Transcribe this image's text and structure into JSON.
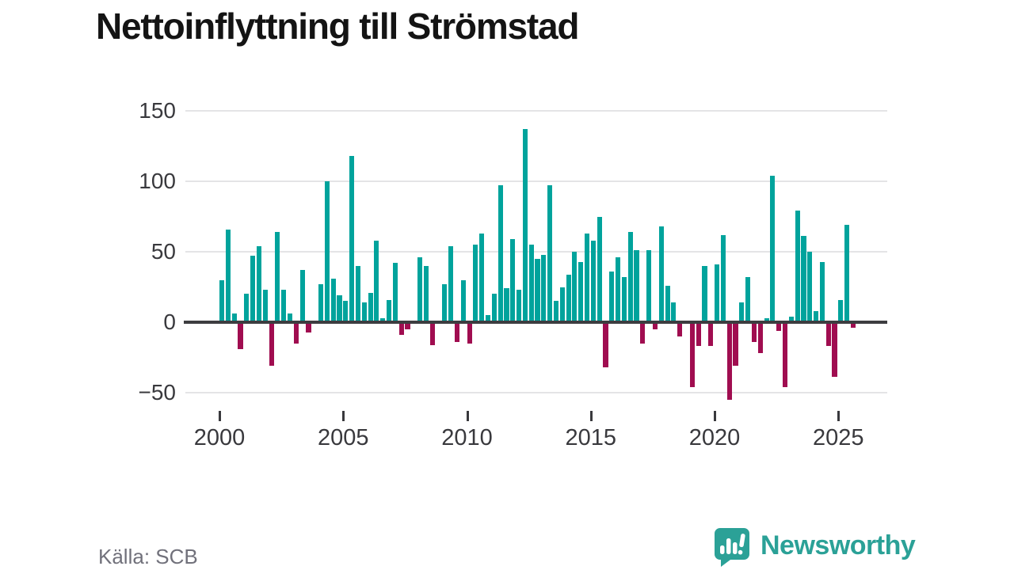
{
  "title": "Nettoinflyttning till Strömstad",
  "source": "Källa: SCB",
  "brand": {
    "name": "Newsworthy",
    "color": "#2ba197",
    "icon": "speech-bubble-bar-chart"
  },
  "chart_data": {
    "type": "bar",
    "title": "Nettoinflyttning till Strömstad",
    "xlabel": "",
    "ylabel": "",
    "frequency": "quarterly",
    "start_period": "2000Q1",
    "end_period": "2025Q3",
    "x_tick_labels": [
      "2000",
      "2005",
      "2010",
      "2015",
      "2020",
      "2025"
    ],
    "y_tick_values": [
      150,
      100,
      50,
      0,
      -50
    ],
    "ylim": [
      -62,
      158
    ],
    "grid": "horizontal",
    "legend": "none",
    "positive_color": "#00a39c",
    "negative_color": "#a00d50",
    "series": [
      {
        "name": "Nettoinflyttning",
        "values": [
          30,
          66,
          6,
          -19,
          20,
          47,
          54,
          23,
          -31,
          64,
          23,
          6,
          -15,
          37,
          -7,
          0,
          27,
          100,
          31,
          19,
          15,
          118,
          40,
          14,
          21,
          58,
          3,
          16,
          42,
          -9,
          -5,
          0,
          46,
          40,
          -16,
          0,
          27,
          54,
          -14,
          30,
          -15,
          55,
          63,
          5,
          20,
          97,
          24,
          59,
          23,
          137,
          55,
          45,
          48,
          97,
          15,
          25,
          34,
          50,
          43,
          63,
          58,
          75,
          -32,
          36,
          46,
          32,
          64,
          51,
          -15,
          51,
          -5,
          68,
          26,
          14,
          -10,
          0,
          -46,
          -17,
          40,
          -17,
          41,
          62,
          -55,
          -31,
          14,
          32,
          -14,
          -22,
          3,
          104,
          -6,
          -46,
          4,
          79,
          61,
          50,
          8,
          43,
          -17,
          -39,
          16,
          69,
          -4
        ]
      }
    ]
  }
}
